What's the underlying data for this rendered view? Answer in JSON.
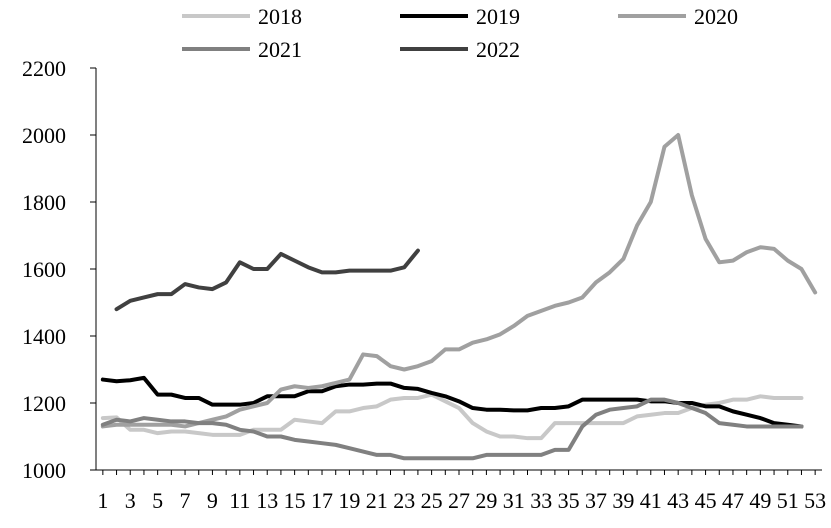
{
  "chart_data": {
    "type": "line",
    "title": "",
    "xlabel": "",
    "ylabel": "",
    "ylim": [
      1000,
      2200
    ],
    "yticks": [
      1000,
      1200,
      1400,
      1600,
      1800,
      2000,
      2200
    ],
    "x_tick_labels": [
      "1",
      "3",
      "5",
      "7",
      "9",
      "11",
      "13",
      "15",
      "17",
      "19",
      "21",
      "23",
      "25",
      "27",
      "29",
      "31",
      "33",
      "35",
      "37",
      "39",
      "41",
      "43",
      "45",
      "47",
      "49",
      "51",
      "53"
    ],
    "x": [
      1,
      2,
      3,
      4,
      5,
      6,
      7,
      8,
      9,
      10,
      11,
      12,
      13,
      14,
      15,
      16,
      17,
      18,
      19,
      20,
      21,
      22,
      23,
      24,
      25,
      26,
      27,
      28,
      29,
      30,
      31,
      32,
      33,
      34,
      35,
      36,
      37,
      38,
      39,
      40,
      41,
      42,
      43,
      44,
      45,
      46,
      47,
      48,
      49,
      50,
      51,
      52,
      53
    ],
    "grid": false,
    "legend_position": "top",
    "series": [
      {
        "name": "2018",
        "color": "#c8c8c8",
        "values": [
          1155,
          1157,
          1120,
          1120,
          1110,
          1115,
          1115,
          1110,
          1105,
          1105,
          1105,
          1120,
          1120,
          1120,
          1150,
          1145,
          1140,
          1175,
          1175,
          1185,
          1190,
          1210,
          1215,
          1215,
          1225,
          1205,
          1185,
          1140,
          1115,
          1100,
          1100,
          1095,
          1095,
          1140,
          1140,
          1140,
          1140,
          1140,
          1140,
          1160,
          1165,
          1170,
          1170,
          1185,
          1195,
          1200,
          1210,
          1210,
          1220,
          1215,
          1215,
          1215,
          null
        ]
      },
      {
        "name": "2019",
        "color": "#000000",
        "values": [
          1270,
          1265,
          1268,
          1275,
          1225,
          1225,
          1215,
          1215,
          1195,
          1195,
          1195,
          1200,
          1220,
          1220,
          1220,
          1235,
          1235,
          1250,
          1255,
          1255,
          1258,
          1258,
          1245,
          1242,
          1230,
          1220,
          1205,
          1185,
          1180,
          1180,
          1178,
          1178,
          1185,
          1185,
          1190,
          1210,
          1210,
          1210,
          1210,
          1210,
          1205,
          1205,
          1200,
          1200,
          1190,
          1190,
          1175,
          1165,
          1155,
          1140,
          1135,
          1130,
          null
        ]
      },
      {
        "name": "2020",
        "color": "#a0a0a0",
        "values": [
          1130,
          1135,
          1135,
          1135,
          1135,
          1135,
          1130,
          1140,
          1150,
          1160,
          1180,
          1190,
          1200,
          1240,
          1250,
          1245,
          1250,
          1260,
          1270,
          1345,
          1340,
          1310,
          1300,
          1310,
          1325,
          1360,
          1360,
          1380,
          1390,
          1405,
          1430,
          1460,
          1475,
          1490,
          1500,
          1515,
          1560,
          1590,
          1630,
          1730,
          1800,
          1965,
          2000,
          1820,
          1690,
          1620,
          1625,
          1650,
          1665,
          1660,
          1625,
          1600,
          1530
        ]
      },
      {
        "name": "2021",
        "color": "#808080",
        "values": [
          1135,
          1150,
          1145,
          1155,
          1150,
          1145,
          1145,
          1140,
          1140,
          1135,
          1120,
          1115,
          1100,
          1100,
          1090,
          1085,
          1080,
          1075,
          1065,
          1055,
          1045,
          1045,
          1035,
          1035,
          1035,
          1035,
          1035,
          1035,
          1045,
          1045,
          1045,
          1045,
          1045,
          1060,
          1060,
          1130,
          1165,
          1180,
          1185,
          1190,
          1210,
          1210,
          1200,
          1185,
          1170,
          1140,
          1135,
          1130,
          1130,
          1130,
          1130,
          1130,
          null
        ]
      },
      {
        "name": "2022",
        "color": "#404040",
        "values": [
          null,
          1480,
          1505,
          1515,
          1525,
          1525,
          1555,
          1545,
          1540,
          1560,
          1620,
          1600,
          1600,
          1645,
          1625,
          1605,
          1590,
          1590,
          1595,
          1595,
          1595,
          1595,
          1605,
          1655,
          null,
          null,
          null,
          null,
          null,
          null,
          null,
          null,
          null,
          null,
          null,
          null,
          null,
          null,
          null,
          null,
          null,
          null,
          null,
          null,
          null,
          null,
          null,
          null,
          null,
          null,
          null,
          null,
          null
        ]
      }
    ]
  }
}
